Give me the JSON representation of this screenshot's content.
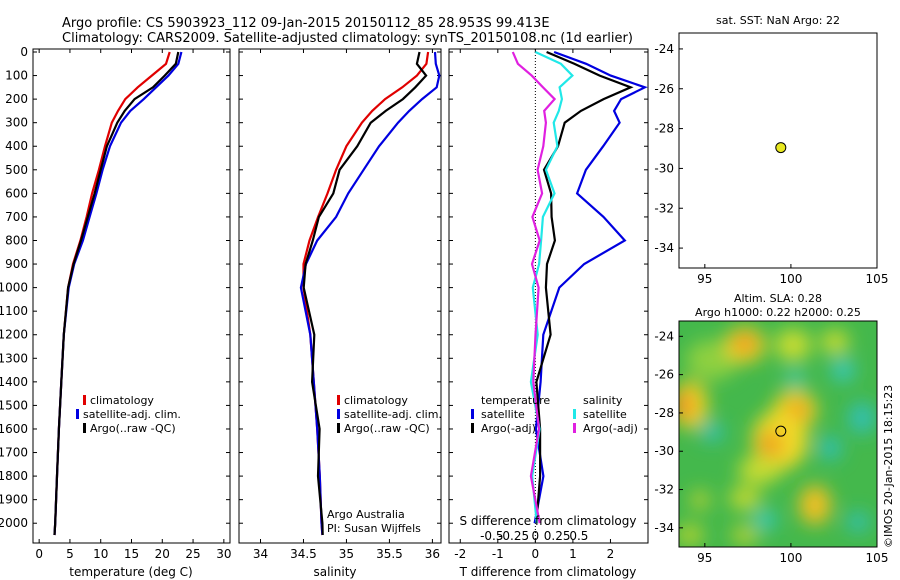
{
  "titles": {
    "line1": "Argo profile: CS 5903923_112 09-Jan-2015 20150112_85 28.953S 99.413E",
    "line2": "Climatology: CARS2009. Satellite-adjusted climatology: synTS_20150108.nc (1d earlier)"
  },
  "depth_ticks": [
    "0",
    "100",
    "200",
    "300",
    "400",
    "500",
    "600",
    "700",
    "800",
    "900",
    "1000",
    "1100",
    "1200",
    "1300",
    "1400",
    "1500",
    "1600",
    "1700",
    "1800",
    "1900",
    "2000"
  ],
  "legend_common": {
    "climatology": "climatology",
    "satellite": "satellite-adj. clim.",
    "argo": "Argo(..raw -QC)"
  },
  "legend_diff": {
    "temperature": "temperature",
    "salinity": "salinity",
    "satellite": "satellite",
    "argo": "Argo(-adj)"
  },
  "credits": {
    "org": "Argo Australia",
    "pi": "PI: Susan Wijffels"
  },
  "map_sst": {
    "title": "sat. SST: NaN Argo: 22",
    "x_ticks": [
      "95",
      "100",
      "105"
    ],
    "y_ticks": [
      "-24",
      "-26",
      "-28",
      "-30",
      "-32",
      "-34"
    ]
  },
  "map_sla": {
    "title1": "Altim. SLA: 0.28",
    "title2": "Argo h1000: 0.22 h2000: 0.25",
    "x_ticks": [
      "95",
      "100",
      "105"
    ],
    "y_ticks": [
      "-24",
      "-26",
      "-28",
      "-30",
      "-32",
      "-34"
    ]
  },
  "stamp": "©IMOS 20-Jan-2015 18:15:23",
  "colors": {
    "climatology": "#e00000",
    "satellite": "#0000e0",
    "argo": "#000000",
    "sat_salinity": "#20e8e8",
    "argo_salinity": "#e020e0",
    "marker": "#e8e820"
  },
  "chart_data": [
    {
      "type": "line",
      "xlabel": "temperature (deg C)",
      "ylabel": "",
      "xlim": [
        -1,
        31
      ],
      "ylim": [
        2050,
        0
      ],
      "x_ticks": [
        "0",
        "5",
        "10",
        "15",
        "20",
        "25",
        "30"
      ],
      "series": [
        {
          "name": "climatology",
          "depth": [
            0,
            50,
            100,
            150,
            200,
            250,
            300,
            400,
            500,
            600,
            700,
            800,
            900,
            1000,
            1200,
            1400,
            1600,
            1800,
            2000,
            2050
          ],
          "values": [
            21.2,
            20.6,
            18.3,
            16.0,
            14.0,
            12.8,
            11.8,
            10.7,
            9.7,
            8.6,
            7.7,
            6.7,
            5.5,
            4.7,
            4.0,
            3.6,
            3.2,
            2.9,
            2.6,
            2.5
          ]
        },
        {
          "name": "satellite-adj. clim.",
          "depth": [
            0,
            50,
            100,
            150,
            200,
            250,
            300,
            400,
            500,
            600,
            700,
            800,
            900,
            1000,
            1200,
            1400,
            1600,
            1800,
            2000,
            2050
          ],
          "values": [
            23.1,
            22.6,
            21.0,
            19.0,
            17.0,
            14.8,
            13.3,
            11.5,
            10.3,
            9.3,
            8.2,
            7.1,
            5.7,
            4.8,
            4.0,
            3.6,
            3.2,
            2.9,
            2.6,
            2.5
          ]
        },
        {
          "name": "Argo(..raw -QC)",
          "depth": [
            0,
            50,
            100,
            150,
            200,
            250,
            300,
            400,
            500,
            600,
            700,
            800,
            900,
            1000,
            1200,
            1400,
            1600,
            1800,
            2000,
            2050
          ],
          "values": [
            22.6,
            22.2,
            20.4,
            18.5,
            15.5,
            13.9,
            12.7,
            11.0,
            10.0,
            9.0,
            7.9,
            6.8,
            5.6,
            4.7,
            4.0,
            3.6,
            3.2,
            2.9,
            2.6,
            2.5
          ]
        }
      ]
    },
    {
      "type": "line",
      "xlabel": "salinity",
      "ylabel": "",
      "xlim": [
        33.75,
        36.1
      ],
      "ylim": [
        2050,
        0
      ],
      "x_ticks": [
        "34",
        "34.5",
        "35",
        "35.5",
        "36"
      ],
      "series": [
        {
          "name": "climatology",
          "depth": [
            0,
            50,
            100,
            150,
            200,
            250,
            300,
            400,
            500,
            600,
            700,
            800,
            900,
            1000,
            1200,
            1400,
            1600,
            1800,
            2000,
            2050
          ],
          "values": [
            35.95,
            35.93,
            35.82,
            35.65,
            35.45,
            35.3,
            35.18,
            35.0,
            34.88,
            34.78,
            34.67,
            34.57,
            34.5,
            34.5,
            34.58,
            34.62,
            34.66,
            34.69,
            34.71,
            34.72
          ]
        },
        {
          "name": "satellite-adj. clim.",
          "depth": [
            0,
            50,
            100,
            150,
            200,
            250,
            300,
            400,
            500,
            600,
            700,
            800,
            900,
            1000,
            1200,
            1400,
            1600,
            1800,
            2000,
            2050
          ],
          "values": [
            36.03,
            36.04,
            36.08,
            36.05,
            35.88,
            35.73,
            35.6,
            35.38,
            35.2,
            35.02,
            34.88,
            34.66,
            34.53,
            34.47,
            34.58,
            34.62,
            34.66,
            34.69,
            34.71,
            34.72
          ]
        },
        {
          "name": "Argo(..raw -QC)",
          "depth": [
            0,
            50,
            100,
            150,
            200,
            250,
            300,
            400,
            500,
            600,
            700,
            800,
            900,
            1000,
            1200,
            1400,
            1600,
            1800,
            2000,
            2050
          ],
          "values": [
            35.85,
            35.85,
            35.9,
            35.82,
            35.65,
            35.45,
            35.3,
            35.1,
            34.95,
            34.82,
            34.7,
            34.6,
            34.52,
            34.52,
            34.6,
            34.63,
            34.66,
            34.69,
            34.71,
            34.72
          ]
        }
      ]
    },
    {
      "type": "line",
      "xlabel": "T difference from climatology",
      "ylabel": "",
      "xlim": [
        -2.3,
        3.0
      ],
      "ylim": [
        2050,
        0
      ],
      "x_ticks": [
        "-2",
        "-1",
        "0",
        "1",
        "2"
      ],
      "secondary_x_label": "S difference from climatology",
      "secondary_x_ticks": [
        "-0.5",
        "-0.25",
        "0",
        "0.25",
        "0.5"
      ],
      "series": [
        {
          "name": "temperature satellite",
          "depth": [
            0,
            50,
            100,
            150,
            200,
            250,
            300,
            400,
            500,
            600,
            700,
            800,
            900,
            1000,
            1200,
            1400,
            1600,
            1800,
            2000
          ],
          "values": [
            0.5,
            1.3,
            2.1,
            2.8,
            2.4,
            2.0,
            2.3,
            1.8,
            1.3,
            1.2,
            1.7,
            2.5,
            1.2,
            0.7,
            0.2,
            0.1,
            0.1,
            0.1,
            0.1
          ]
        },
        {
          "name": "temperature Argo(-adj)",
          "depth": [
            0,
            50,
            100,
            150,
            200,
            250,
            300,
            400,
            500,
            600,
            700,
            800,
            900,
            1000,
            1200,
            1400,
            1600,
            1800,
            2000
          ],
          "values": [
            0.3,
            1.1,
            1.7,
            2.5,
            1.9,
            1.1,
            0.9,
            0.5,
            0.3,
            0.4,
            0.4,
            0.6,
            0.2,
            0.4,
            0.3,
            0.1,
            0.1,
            0.1,
            0.1
          ]
        },
        {
          "name": "salinity satellite",
          "depth": [
            0,
            50,
            100,
            150,
            200,
            250,
            300,
            400,
            500,
            600,
            700,
            800,
            900,
            1000,
            1200,
            1400,
            1600,
            1800,
            2000
          ],
          "values": [
            0.0,
            0.2,
            0.22,
            0.18,
            0.17,
            0.15,
            0.14,
            0.12,
            0.1,
            0.1,
            0.07,
            0.03,
            0.02,
            0.0,
            -0.01,
            0.0,
            0.0,
            0.0,
            0.0
          ]
        },
        {
          "name": "salinity Argo(-adj)",
          "depth": [
            0,
            50,
            100,
            150,
            200,
            250,
            300,
            400,
            500,
            600,
            700,
            800,
            900,
            1000,
            1200,
            1400,
            1600,
            1800,
            2000
          ],
          "values": [
            -0.15,
            -0.1,
            -0.05,
            0.08,
            0.1,
            0.08,
            0.06,
            0.05,
            0.03,
            0.02,
            0.01,
            0.0,
            0.0,
            0.01,
            0.0,
            0.0,
            0.0,
            0.0,
            0.0
          ]
        }
      ]
    },
    {
      "type": "scatter",
      "title": "sat. SST: NaN Argo: 22",
      "xlim": [
        93.5,
        105
      ],
      "ylim": [
        -35,
        -23.2
      ],
      "points": [
        {
          "lon": 99.413,
          "lat": -28.953
        }
      ]
    },
    {
      "type": "heatmap",
      "title": "Argo h1000: 0.22 h2000: 0.25",
      "xlim": [
        93.5,
        105
      ],
      "ylim": [
        -35,
        -23.2
      ],
      "points": [
        {
          "lon": 99.413,
          "lat": -28.953
        }
      ]
    }
  ]
}
